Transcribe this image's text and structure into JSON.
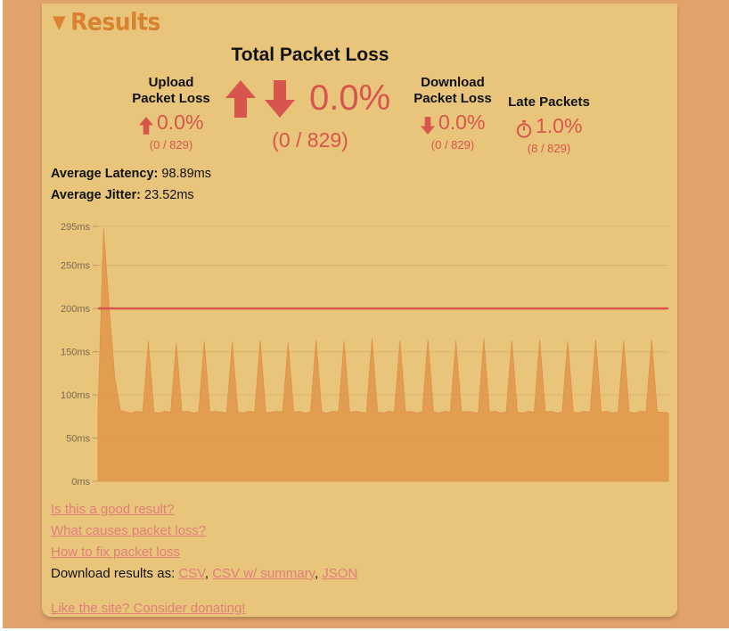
{
  "results": {
    "title": "Results"
  },
  "total_loss": {
    "label": "Total Packet Loss",
    "value": "0.0%",
    "ratio": "(0 / 829)"
  },
  "upload": {
    "label_line1": "Upload",
    "label_line2": "Packet Loss",
    "value": "0.0%",
    "ratio": "(0 / 829)"
  },
  "download": {
    "label_line1": "Download",
    "label_line2": "Packet Loss",
    "value": "0.0%",
    "ratio": "(0 / 829)"
  },
  "late": {
    "label": "Late Packets",
    "value": "1.0%",
    "ratio": "(8 / 829)"
  },
  "latency": {
    "label": "Average Latency:",
    "value": "98.89ms"
  },
  "jitter": {
    "label": "Average Jitter:",
    "value": "23.52ms"
  },
  "links": {
    "good_result": "Is this a good result?",
    "causes": "What causes packet loss?",
    "fix": "How to fix packet loss",
    "download_prefix": "Download results as:",
    "csv": "CSV",
    "csv_summary": "CSV w/ summary",
    "json": "JSON",
    "sep1": ",",
    "sep2": ",",
    "donate": "Like the site? Consider donating!"
  },
  "colors": {
    "accent": "#d8554d",
    "series": "#e2994d",
    "threshold": "#d8554d",
    "panel": "#e8c57b"
  },
  "chart_data": {
    "type": "area",
    "ylim": [
      0,
      295
    ],
    "yticks": [
      "295ms",
      "250ms",
      "200ms",
      "150ms",
      "100ms",
      "50ms",
      "0ms"
    ],
    "ytick_values": [
      295,
      250,
      200,
      150,
      100,
      50,
      0
    ],
    "threshold": 200,
    "grid": true,
    "series": [
      {
        "values": [
          82,
          292,
          200,
          120,
          82,
          80,
          79,
          81,
          80,
          162,
          80,
          79,
          81,
          80,
          160,
          80,
          81,
          79,
          80,
          162,
          80,
          81,
          80,
          79,
          161,
          80,
          79,
          81,
          80,
          163,
          79,
          80,
          81,
          80,
          160,
          80,
          81,
          79,
          80,
          164,
          80,
          79,
          81,
          80,
          162,
          80,
          81,
          80,
          79,
          165,
          80,
          79,
          81,
          80,
          163,
          80,
          81,
          79,
          80,
          164,
          80,
          79,
          81,
          80,
          162,
          80,
          81,
          80,
          79,
          165,
          80,
          81,
          79,
          80,
          163,
          80,
          79,
          81,
          80,
          164,
          80,
          81,
          79,
          80,
          162,
          80,
          79,
          81,
          80,
          164,
          80,
          81,
          79,
          80,
          162,
          80,
          79,
          81,
          80,
          164,
          80,
          80,
          79
        ]
      }
    ]
  }
}
